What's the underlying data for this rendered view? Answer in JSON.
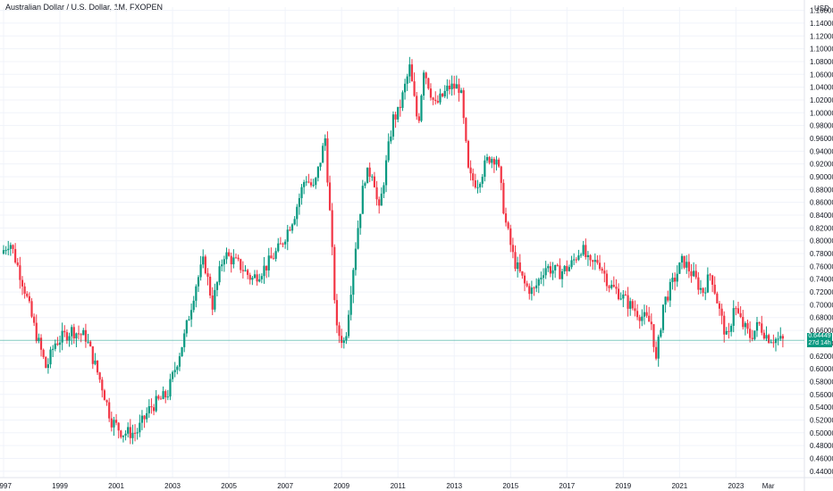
{
  "header": {
    "title": "Australian Dollar / U.S. Dollar, 1M, FXOPEN"
  },
  "currency_label": "USD",
  "current": {
    "price": "0.64449",
    "countdown": "27d 14h",
    "value": 0.64449
  },
  "colors": {
    "up": "#089981",
    "down": "#f23645",
    "grid": "#f0f3fa",
    "current_line": "#089981"
  },
  "chart_data": {
    "type": "candlestick",
    "title": "Australian Dollar / U.S. Dollar, 1M, FXOPEN",
    "ylim": [
      0.43,
      1.165
    ],
    "y_ticks": [
      "1.16000",
      "1.14000",
      "1.12000",
      "1.10000",
      "1.08000",
      "1.06000",
      "1.04000",
      "1.02000",
      "1.00000",
      "0.98000",
      "0.96000",
      "0.94000",
      "0.92000",
      "0.90000",
      "0.88000",
      "0.86000",
      "0.84000",
      "0.82000",
      "0.80000",
      "0.78000",
      "0.76000",
      "0.74000",
      "0.72000",
      "0.70000",
      "0.68000",
      "0.66000",
      "0.64000",
      "0.62000",
      "0.60000",
      "0.58000",
      "0.56000",
      "0.54000",
      "0.52000",
      "0.50000",
      "0.48000",
      "0.46000",
      "0.44000"
    ],
    "x_ticks": [
      "1997",
      "1999",
      "2001",
      "2003",
      "2005",
      "2007",
      "2009",
      "2011",
      "2013",
      "2015",
      "2017",
      "2019",
      "2021",
      "2023",
      "Mar"
    ],
    "x_range": [
      1997.0,
      2024.67
    ],
    "anchors": [
      [
        1997.0,
        0.78
      ],
      [
        1997.3,
        0.8
      ],
      [
        1997.8,
        0.73
      ],
      [
        1998.2,
        0.66
      ],
      [
        1998.6,
        0.6
      ],
      [
        1998.9,
        0.64
      ],
      [
        1999.5,
        0.66
      ],
      [
        2000.0,
        0.65
      ],
      [
        2000.6,
        0.57
      ],
      [
        2000.9,
        0.52
      ],
      [
        2001.3,
        0.5
      ],
      [
        2001.8,
        0.5
      ],
      [
        2002.3,
        0.54
      ],
      [
        2002.9,
        0.56
      ],
      [
        2003.5,
        0.65
      ],
      [
        2003.9,
        0.73
      ],
      [
        2004.2,
        0.77
      ],
      [
        2004.5,
        0.7
      ],
      [
        2004.9,
        0.78
      ],
      [
        2005.5,
        0.76
      ],
      [
        2005.9,
        0.74
      ],
      [
        2006.4,
        0.76
      ],
      [
        2006.9,
        0.79
      ],
      [
        2007.4,
        0.84
      ],
      [
        2007.8,
        0.9
      ],
      [
        2008.1,
        0.88
      ],
      [
        2008.5,
        0.96
      ],
      [
        2008.7,
        0.82
      ],
      [
        2008.9,
        0.66
      ],
      [
        2009.2,
        0.64
      ],
      [
        2009.6,
        0.8
      ],
      [
        2009.9,
        0.9
      ],
      [
        2010.2,
        0.91
      ],
      [
        2010.4,
        0.84
      ],
      [
        2010.9,
        0.99
      ],
      [
        2011.1,
        1.0
      ],
      [
        2011.5,
        1.07
      ],
      [
        2011.8,
        0.98
      ],
      [
        2012.0,
        1.07
      ],
      [
        2012.4,
        1.01
      ],
      [
        2012.9,
        1.04
      ],
      [
        2013.3,
        1.04
      ],
      [
        2013.6,
        0.9
      ],
      [
        2013.9,
        0.89
      ],
      [
        2014.3,
        0.93
      ],
      [
        2014.6,
        0.93
      ],
      [
        2014.9,
        0.83
      ],
      [
        2015.2,
        0.77
      ],
      [
        2015.6,
        0.73
      ],
      [
        2015.9,
        0.72
      ],
      [
        2016.3,
        0.76
      ],
      [
        2016.8,
        0.75
      ],
      [
        2017.2,
        0.76
      ],
      [
        2017.6,
        0.79
      ],
      [
        2017.9,
        0.76
      ],
      [
        2018.2,
        0.77
      ],
      [
        2018.6,
        0.73
      ],
      [
        2018.9,
        0.72
      ],
      [
        2019.3,
        0.7
      ],
      [
        2019.8,
        0.68
      ],
      [
        2020.1,
        0.67
      ],
      [
        2020.25,
        0.61
      ],
      [
        2020.5,
        0.7
      ],
      [
        2020.9,
        0.74
      ],
      [
        2021.2,
        0.77
      ],
      [
        2021.5,
        0.75
      ],
      [
        2021.9,
        0.72
      ],
      [
        2022.2,
        0.75
      ],
      [
        2022.5,
        0.69
      ],
      [
        2022.8,
        0.64
      ],
      [
        2023.0,
        0.7
      ],
      [
        2023.3,
        0.67
      ],
      [
        2023.6,
        0.65
      ],
      [
        2023.9,
        0.67
      ],
      [
        2024.2,
        0.65
      ],
      [
        2024.67,
        0.644
      ]
    ]
  }
}
